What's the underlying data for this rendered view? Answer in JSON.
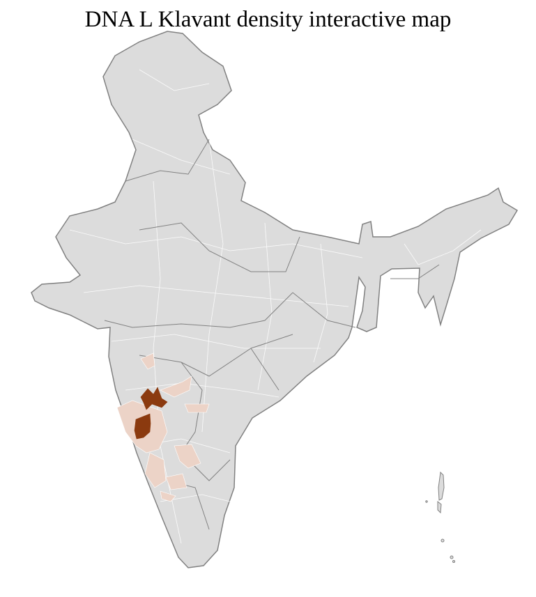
{
  "title": "DNA L Klavant density interactive map",
  "colors": {
    "base_region": "#dcdcdc",
    "district_border": "#ffffff",
    "state_border": "#808080",
    "low_density": "#ecd3c7",
    "high_density": "#8b3a0f"
  },
  "map": {
    "regions_highlighted": [
      {
        "level": "high"
      },
      {
        "level": "high"
      },
      {
        "level": "low"
      }
    ]
  }
}
